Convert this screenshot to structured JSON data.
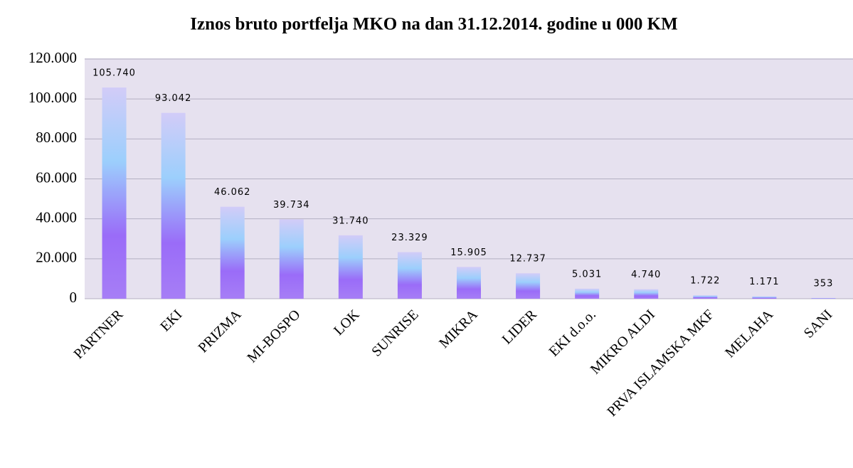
{
  "chart_data": {
    "type": "bar",
    "title": "Iznos bruto portfelja MKO na dan 31.12.2014. godine u 000 KM",
    "categories": [
      "PARTNER",
      "EKI",
      "PRIZMA",
      "MI-BOSPO",
      "LOK",
      "SUNRISE",
      "MIKRA",
      "LIDER",
      "EKI d.o.o.",
      "MIKRO ALDI",
      "PRVA ISLAMSKA MKF",
      "MELAHA",
      "SANI"
    ],
    "values": [
      105740,
      93042,
      46062,
      39734,
      31740,
      23329,
      15905,
      12737,
      5031,
      4740,
      1722,
      1171,
      353
    ],
    "value_labels": [
      "105.740",
      "93.042",
      "46.062",
      "39.734",
      "31.740",
      "23.329",
      "15.905",
      "12.737",
      "5.031",
      "4.740",
      "1.722",
      "1.171",
      "353"
    ],
    "colors": [
      "#d2ccf8",
      "#9ccffc",
      "#9a6cf8",
      "#a67ef6"
    ],
    "ylim": [
      0,
      120000
    ],
    "yticks": [
      0,
      {
        "value": 20000,
        "label": "20.000"
      },
      {
        "value": 40000,
        "label": "40.000"
      },
      {
        "value": 60000,
        "label": "60.000"
      },
      {
        "value": 80000,
        "label": "80.000"
      },
      {
        "value": 100000,
        "label": "100.000"
      },
      {
        "value": 120000,
        "label": "120.000"
      }
    ],
    "grid": true
  }
}
